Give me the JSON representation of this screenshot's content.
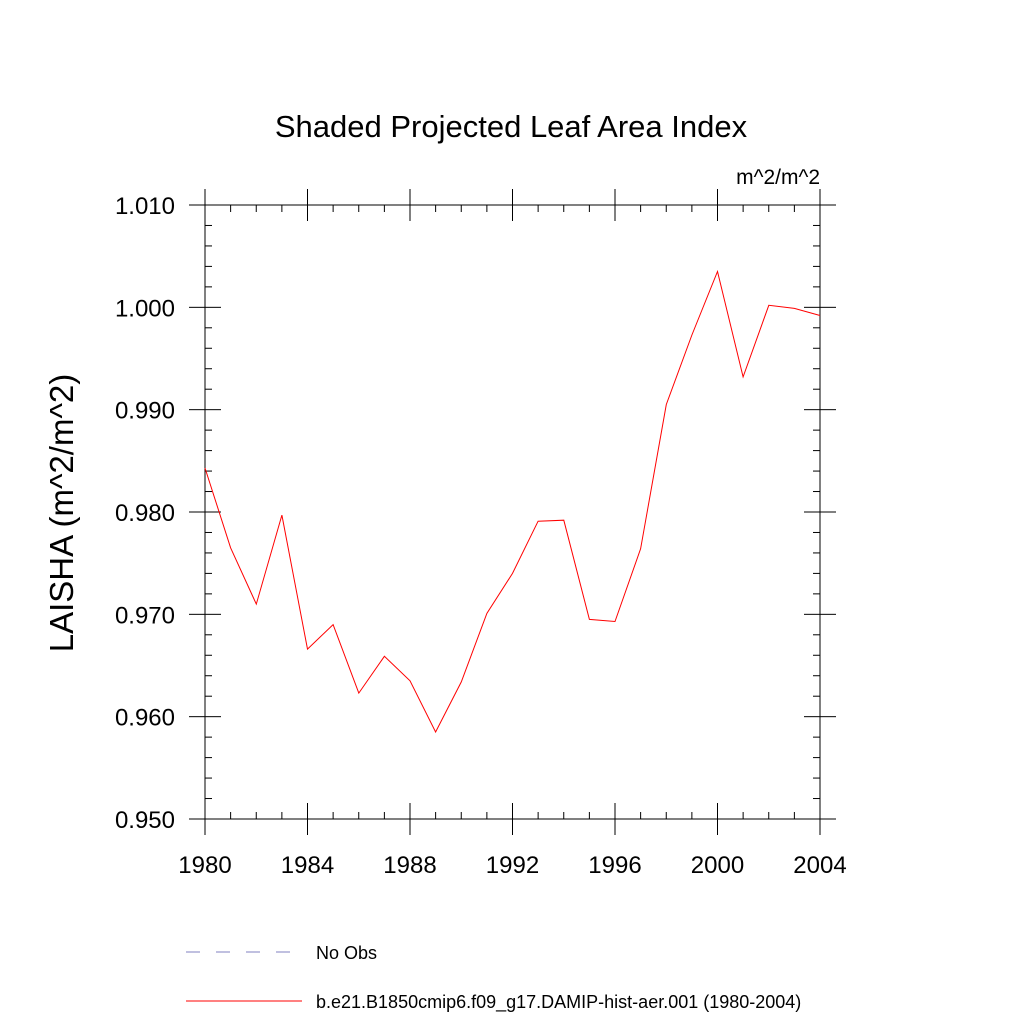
{
  "chart_data": {
    "type": "line",
    "title": "Shaded Projected Leaf Area Index",
    "units": "m^2/m^2",
    "xlabel": "",
    "ylabel": "LAISHA  (m^2/m^2)",
    "xlim": [
      1980,
      2004
    ],
    "ylim": [
      0.95,
      1.01
    ],
    "x_ticks": [
      "1980",
      "1984",
      "1988",
      "1992",
      "1996",
      "2000",
      "2004"
    ],
    "y_ticks": [
      "0.950",
      "0.960",
      "0.970",
      "0.980",
      "0.990",
      "1.000",
      "1.010"
    ],
    "grid": false,
    "legend_position": "bottom",
    "series": [
      {
        "name": "No Obs",
        "color": "#8080c0",
        "style": "dashed",
        "x": [],
        "values": []
      },
      {
        "name": "b.e21.B1850cmip6.f09_g17.DAMIP-hist-aer.001 (1980-2004)",
        "color": "#ff0000",
        "style": "solid",
        "x": [
          1980,
          1981,
          1982,
          1983,
          1984,
          1985,
          1986,
          1987,
          1988,
          1989,
          1990,
          1991,
          1992,
          1993,
          1994,
          1995,
          1996,
          1997,
          1998,
          1999,
          2000,
          2001,
          2002,
          2003,
          2004
        ],
        "values": [
          0.9843,
          0.9765,
          0.971,
          0.9797,
          0.9666,
          0.969,
          0.9623,
          0.9659,
          0.9635,
          0.9585,
          0.9634,
          0.9701,
          0.974,
          0.9791,
          0.9792,
          0.9695,
          0.9693,
          0.9764,
          0.9905,
          0.9973,
          1.0035,
          0.9932,
          1.0002,
          0.9999,
          0.9992
        ]
      }
    ]
  }
}
